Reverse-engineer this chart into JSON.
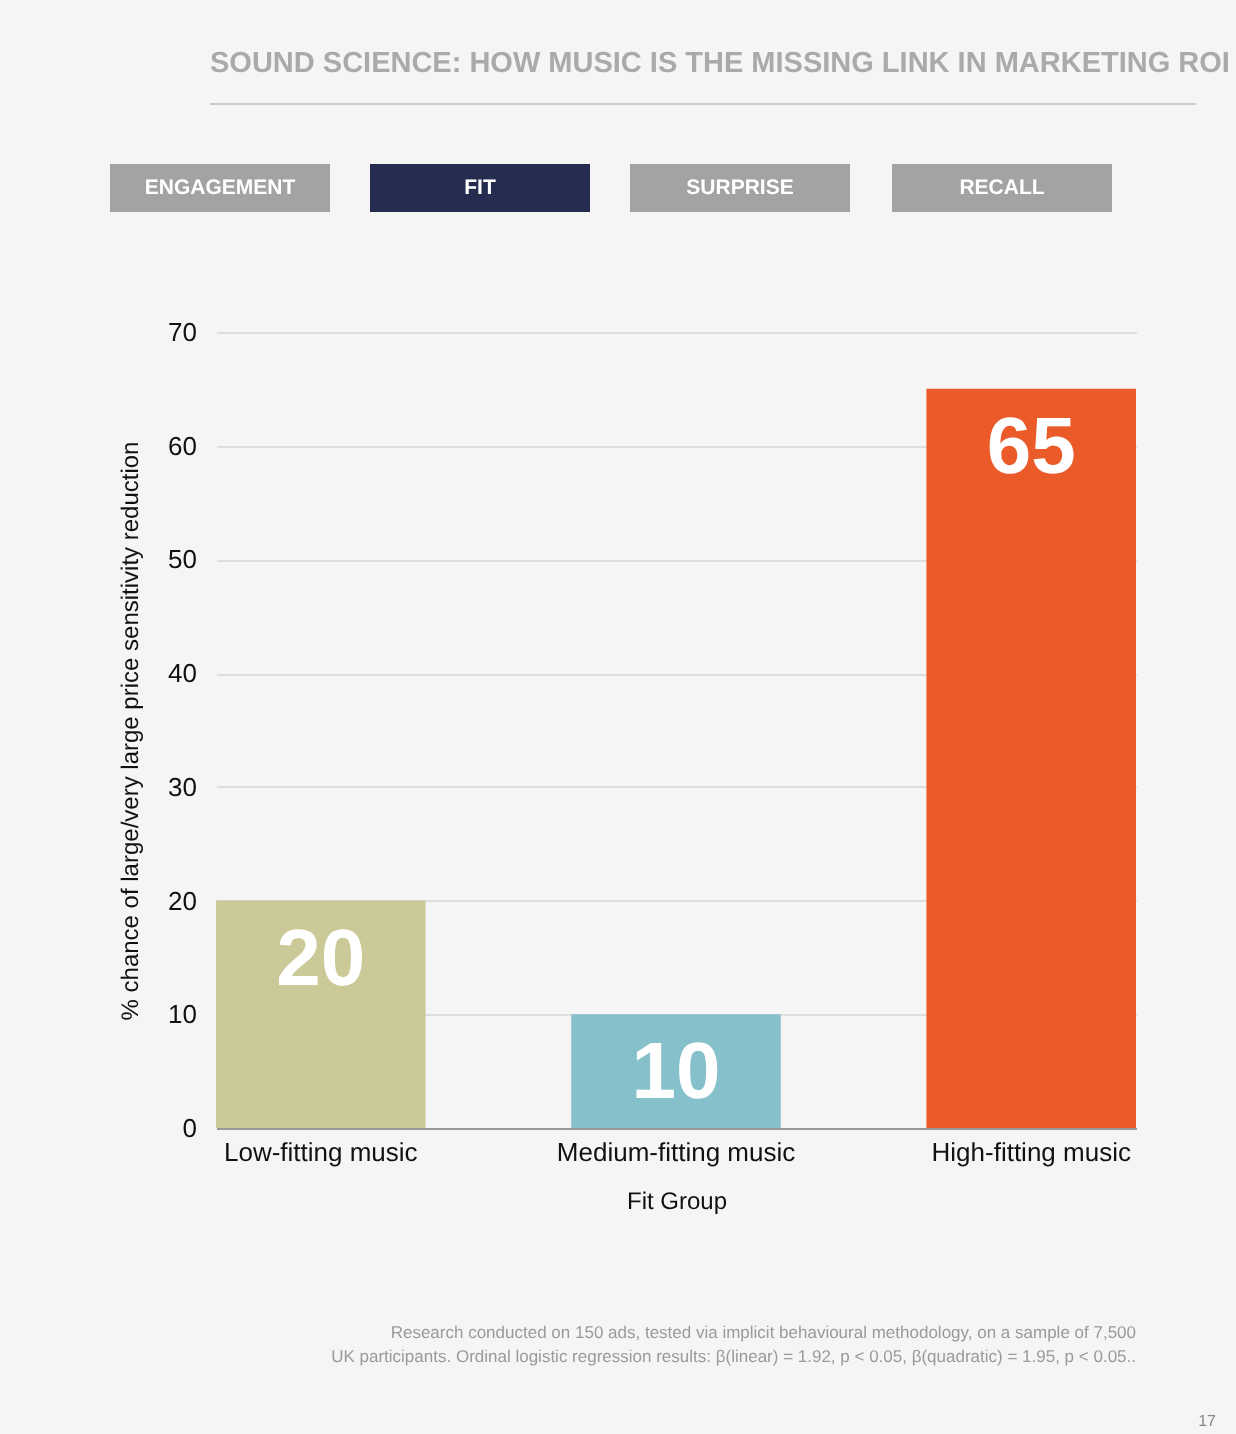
{
  "chart_data": {
    "type": "bar",
    "title": "SOUND SCIENCE: HOW MUSIC IS THE MISSING LINK IN MARKETING ROI",
    "categories": [
      "Low-fitting music",
      "Medium-fitting music",
      "High-fitting music"
    ],
    "values": [
      20,
      10,
      65
    ],
    "colors": [
      "#cbc998",
      "#86c0cb",
      "#eb5b2a"
    ],
    "xlabel": "Fit Group",
    "ylabel": "% chance of large/very large price sensitivity reduction",
    "ylim": [
      0,
      70
    ],
    "yticks": [
      0,
      10,
      20,
      30,
      40,
      50,
      60,
      70
    ],
    "grid": "y",
    "data_labels": true,
    "annotations": [
      "ENGAGEMENT",
      "FIT",
      "SURPRISE",
      "RECALL",
      "Research conducted on 150 ads, tested via implicit behavioural methodology, on a sample of 7,500",
      "UK participants. Ordinal logistic regression results:  β(linear) = 1.92, p < 0.05, β(quadratic) = 1.95, p < 0.05..",
      "17"
    ]
  }
}
